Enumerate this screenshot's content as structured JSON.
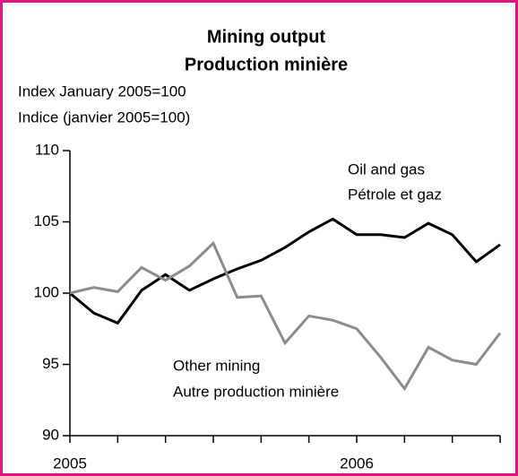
{
  "chart_data": {
    "type": "line",
    "title": [
      "Mining output",
      "Production minière"
    ],
    "ylabel": [
      "Index January 2005=100",
      "Indice (janvier 2005=100)"
    ],
    "categories": [
      "2005",
      null,
      null,
      null,
      null,
      null,
      null,
      null,
      null,
      null,
      null,
      null,
      "2006",
      null,
      null,
      null,
      null,
      null,
      null
    ],
    "series": [
      {
        "name": "Oil and gas",
        "name_fr": "Pétrole et gaz",
        "color": "#000000",
        "values": [
          100.0,
          98.6,
          97.9,
          100.2,
          101.3,
          100.2,
          101.0,
          101.7,
          102.3,
          103.2,
          104.3,
          105.2,
          104.1,
          104.1,
          103.9,
          104.9,
          104.1,
          102.2,
          103.4
        ]
      },
      {
        "name": "Other mining",
        "name_fr": "Autre production minière",
        "color": "#8c8c8c",
        "values": [
          100.0,
          100.4,
          100.1,
          101.8,
          100.9,
          101.9,
          103.5,
          99.7,
          99.8,
          96.5,
          98.4,
          98.1,
          97.5,
          95.5,
          93.3,
          96.2,
          95.3,
          95.0,
          97.2
        ]
      }
    ],
    "ylim": [
      90,
      110
    ],
    "yticks": [
      90,
      95,
      100,
      105,
      110
    ]
  }
}
